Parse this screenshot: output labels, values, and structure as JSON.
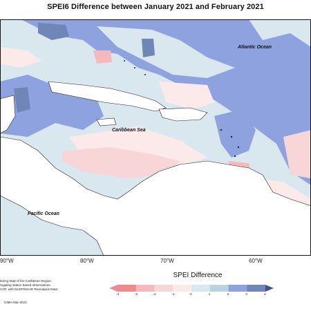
{
  "title": "SPEI6 Difference between January 2021 and February 2021",
  "map": {
    "labels": {
      "atlantic": "Atlantic Ocean",
      "caribbean": "Caribbean Sea",
      "pacific": "Pacific Ocean"
    },
    "longitudes": [
      "90°W",
      "80°W",
      "70°W",
      "60°W"
    ]
  },
  "notes": {
    "line1": "itoring Map of the Caribbean Region.",
    "line2": "regating station based observations,",
    "line3": "COF, with NCEP/NCAR Reanalysis Data."
  },
  "credit": "CIMH Mar-2021",
  "legend": {
    "title": "SPEI Difference",
    "ticks": [
      "-4",
      "-3",
      "-2",
      "-1",
      "0",
      "1",
      "2",
      "3",
      "4"
    ],
    "colors": [
      "#f08a8e",
      "#f5b9bc",
      "#f8d6d8",
      "#fce9ea",
      "#d8e8ee",
      "#b8d4e0",
      "#8ea2e0",
      "#6f86b7",
      "#4b4f8c"
    ]
  }
}
